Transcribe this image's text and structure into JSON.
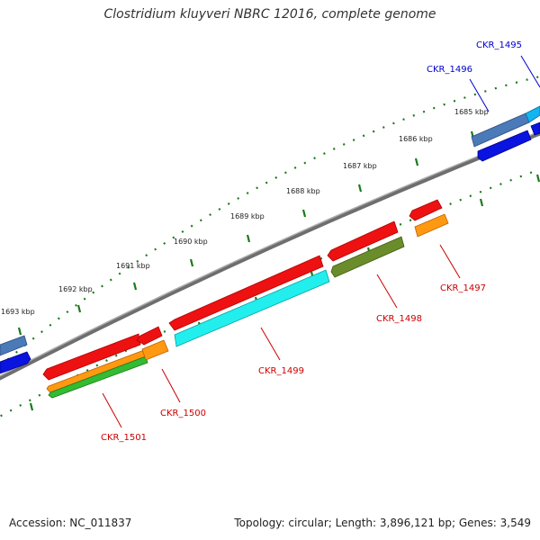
{
  "title": "Clostridium kluyveri NBRC 12016, complete genome",
  "footer": {
    "accession": "Accession: NC_011837",
    "genome_info": "Topology: circular; Length: 3,896,121 bp; Genes: 3,549"
  },
  "scale_labels": [
    "1685 kbp",
    "1686 kbp",
    "1687 kbp",
    "1688 kbp",
    "1689 kbp",
    "1690 kbp",
    "1691 kbp",
    "1692 kbp",
    "1693 kbp"
  ],
  "gene_labels": {
    "forward": [
      "CKR_1495",
      "CKR_1496"
    ],
    "reverse": [
      "CKR_1497",
      "CKR_1498",
      "CKR_1499",
      "CKR_1500",
      "CKR_1501"
    ]
  },
  "colors": {
    "forward_label": "#0000cc",
    "reverse_label": "#cc0000",
    "backbone": "#808080",
    "tick": "#1a7a1a",
    "gene_red": "#ee1111",
    "gene_blue": "#0a14e0",
    "gene_steelblue": "#4a7ab8",
    "gene_sky": "#14b4f0",
    "gene_cyan": "#22eeee",
    "gene_orange": "#ff9911",
    "gene_olive": "#6b8c2a",
    "gene_green": "#33bb33"
  }
}
